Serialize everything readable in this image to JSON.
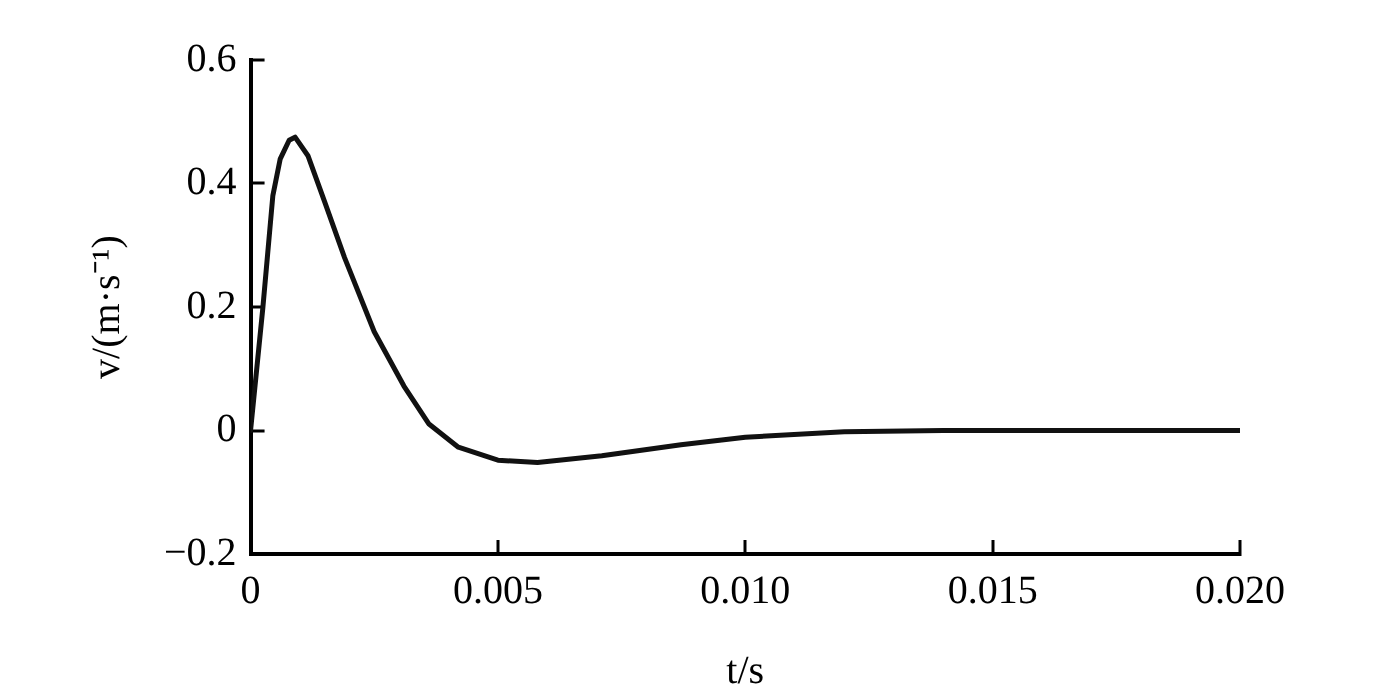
{
  "chart_data": {
    "type": "line",
    "xlabel": "t/s",
    "ylabel": "v/(m·s⁻¹)",
    "x": [
      0,
      0.00025,
      0.00045,
      0.0006,
      0.00078,
      0.0009,
      0.00116,
      0.0015,
      0.0019,
      0.0025,
      0.0031,
      0.0036,
      0.0042,
      0.005,
      0.0058,
      0.0071,
      0.0087,
      0.01,
      0.012,
      0.014,
      0.016,
      0.018,
      0.02
    ],
    "series": [
      {
        "color": "#111111",
        "values": [
          0,
          0.2,
          0.38,
          0.44,
          0.47,
          0.475,
          0.445,
          0.37,
          0.28,
          0.16,
          0.072,
          0.011,
          -0.027,
          -0.048,
          -0.052,
          -0.041,
          -0.023,
          -0.011,
          -0.002,
          0,
          0,
          0,
          0
        ]
      }
    ],
    "xlim": [
      0,
      0.02
    ],
    "xticks": [
      {
        "value": 0,
        "label": "0"
      },
      {
        "value": 0.005,
        "label": "0.005"
      },
      {
        "value": 0.01,
        "label": "0.010"
      },
      {
        "value": 0.015,
        "label": "0.015"
      },
      {
        "value": 0.02,
        "label": "0.020"
      }
    ],
    "ylim": [
      -0.2,
      0.6
    ],
    "yticks": [
      {
        "value": -0.2,
        "label": "−0.2"
      },
      0,
      0.2,
      0.4,
      0.6
    ],
    "grid": false,
    "legend": false,
    "marker": "none",
    "line_style": "solid"
  }
}
